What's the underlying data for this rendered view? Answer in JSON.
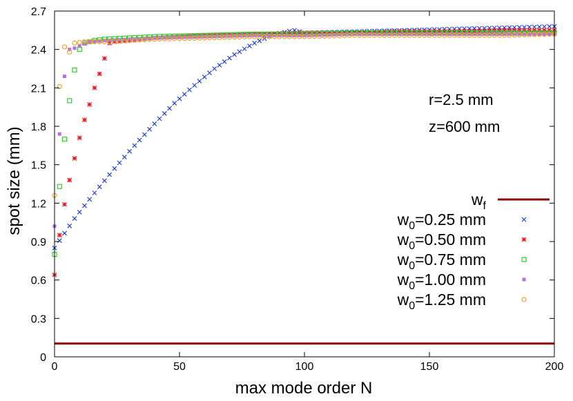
{
  "chart_data": {
    "type": "scatter",
    "xlabel": "max mode order N",
    "ylabel": "spot size (mm)",
    "xlim": [
      0,
      200
    ],
    "ylim": [
      0,
      2.7
    ],
    "x_ticks": [
      0,
      50,
      100,
      150,
      200
    ],
    "y_ticks": [
      0,
      0.3,
      0.6,
      0.9,
      1.2,
      1.5,
      1.8,
      2.1,
      2.4,
      2.7
    ],
    "grid": false,
    "legend_position": "bottom-right",
    "annotations": [
      "r=2.5 mm",
      "z=600 mm"
    ],
    "line_series": {
      "name": "wf",
      "label_main": "w",
      "label_sub": "f",
      "color": "#8b0000",
      "x": [
        0,
        200
      ],
      "y": [
        0.104,
        0.104
      ]
    },
    "series": [
      {
        "name": "w0=0.25 mm",
        "label_main": "w",
        "label_sub": "0",
        "label_rest": "=0.25 mm",
        "marker": "x",
        "color": "#1f3fd6",
        "x": [
          0,
          8,
          16,
          24,
          32,
          40,
          48,
          56,
          64,
          72,
          80,
          88,
          96,
          100,
          120,
          140,
          160,
          180,
          200
        ],
        "y": [
          0.85,
          1.08,
          1.28,
          1.47,
          1.65,
          1.82,
          1.98,
          2.12,
          2.25,
          2.36,
          2.45,
          2.52,
          2.55,
          2.53,
          2.54,
          2.55,
          2.56,
          2.57,
          2.58
        ]
      },
      {
        "name": "w0=0.50 mm",
        "label_main": "w",
        "label_sub": "0",
        "label_rest": "=0.50 mm",
        "marker": "star",
        "color": "#e8161b",
        "x": [
          0,
          2,
          4,
          6,
          8,
          10,
          12,
          14,
          16,
          18,
          20,
          22,
          24,
          40,
          60,
          80,
          100,
          120,
          140,
          160,
          180,
          200
        ],
        "y": [
          0.64,
          0.95,
          1.19,
          1.38,
          1.55,
          1.71,
          1.85,
          1.97,
          2.1,
          2.21,
          2.33,
          2.45,
          2.46,
          2.49,
          2.51,
          2.52,
          2.53,
          2.53,
          2.54,
          2.54,
          2.55,
          2.55
        ]
      },
      {
        "name": "w0=0.75 mm",
        "label_main": "w",
        "label_sub": "0",
        "label_rest": "=0.75 mm",
        "marker": "square",
        "color": "#2ecc2e",
        "x": [
          0,
          2,
          4,
          6,
          8,
          10,
          12,
          16,
          20,
          30,
          40,
          60,
          80,
          100,
          120,
          140,
          160,
          180,
          200
        ],
        "y": [
          0.8,
          1.33,
          1.7,
          2.0,
          2.24,
          2.4,
          2.45,
          2.47,
          2.48,
          2.49,
          2.5,
          2.51,
          2.52,
          2.52,
          2.53,
          2.53,
          2.53,
          2.53,
          2.53
        ]
      },
      {
        "name": "w0=1.00 mm",
        "label_main": "w",
        "label_sub": "0",
        "label_rest": "=1.00 mm",
        "marker": "filled-square",
        "color": "#b46ee6",
        "x": [
          0,
          2,
          4,
          6,
          8,
          10,
          14,
          20,
          30,
          40,
          60,
          80,
          100,
          120,
          140,
          160,
          180,
          200
        ],
        "y": [
          1.02,
          1.74,
          2.19,
          2.4,
          2.41,
          2.43,
          2.46,
          2.47,
          2.48,
          2.49,
          2.5,
          2.51,
          2.51,
          2.52,
          2.52,
          2.52,
          2.52,
          2.52
        ]
      },
      {
        "name": "w0=1.25 mm",
        "label_main": "w",
        "label_sub": "0",
        "label_rest": "=1.25 mm",
        "marker": "circle",
        "color": "#f0a030",
        "x": [
          0,
          2,
          4,
          6,
          8,
          12,
          20,
          30,
          40,
          60,
          80,
          100,
          120,
          140,
          160,
          180,
          200
        ],
        "y": [
          1.26,
          2.11,
          2.42,
          2.38,
          2.45,
          2.46,
          2.46,
          2.47,
          2.48,
          2.49,
          2.5,
          2.5,
          2.51,
          2.51,
          2.51,
          2.51,
          2.52
        ]
      }
    ]
  }
}
